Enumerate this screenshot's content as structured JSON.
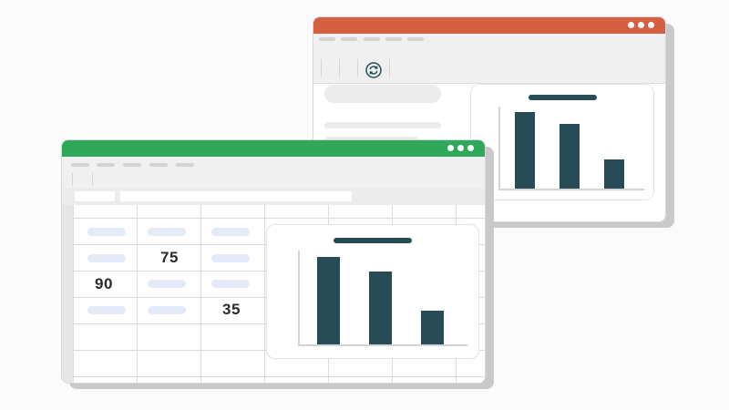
{
  "colors": {
    "presentation_titlebar": "#d55f41",
    "spreadsheet_titlebar": "#2fa85a",
    "chart_bar": "#274c56",
    "cell_placeholder": "#e3ebf8"
  },
  "presentation_window": {
    "controls": [
      "dot",
      "dot",
      "dot"
    ],
    "menu_items": 5,
    "toolbar_icon": "sync-icon",
    "chart_data": {
      "type": "bar",
      "categories": [
        "",
        "",
        ""
      ],
      "values": [
        85,
        72,
        32
      ],
      "ylim": [
        0,
        100
      ],
      "grid": false
    }
  },
  "spreadsheet_window": {
    "controls": [
      "dot",
      "dot",
      "dot"
    ],
    "menu_items": 5,
    "cells": {
      "r2c2": "75",
      "r3c1": "90",
      "r4c3": "35"
    },
    "chart_data": {
      "type": "bar",
      "categories": [
        "",
        "",
        ""
      ],
      "values": [
        90,
        75,
        35
      ],
      "ylim": [
        0,
        100
      ],
      "grid": false
    }
  }
}
